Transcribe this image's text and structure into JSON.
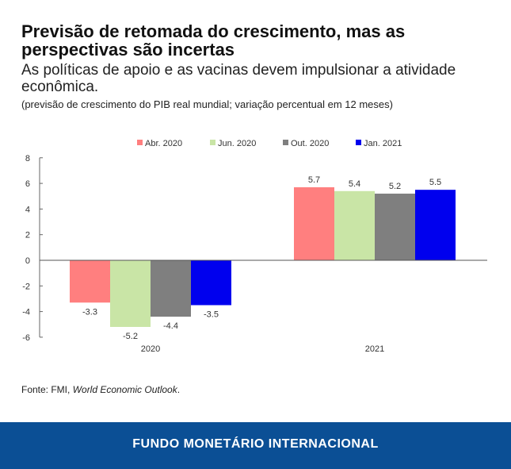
{
  "chart_data": {
    "type": "bar",
    "title": "Previsão de retomada do crescimento, mas as perspectivas são incertas",
    "subtitle": "As políticas de apoio e as vacinas devem impulsionar a atividade econômica.",
    "note": "(previsão de crescimento do PIB real mundial; variação percentual em 12 meses)",
    "categories": [
      "2020",
      "2021"
    ],
    "series": [
      {
        "name": "Abr. 2020",
        "color": "#ff7f7f",
        "values": [
          -3.3,
          5.7
        ]
      },
      {
        "name": "Jun. 2020",
        "color": "#c9e5a6",
        "values": [
          -5.2,
          5.4
        ]
      },
      {
        "name": "Out. 2020",
        "color": "#7f7f7f",
        "values": [
          -4.4,
          5.2
        ]
      },
      {
        "name": "Jan. 2021",
        "color": "#0000ee",
        "values": [
          -3.5,
          5.5
        ]
      }
    ],
    "ylim": [
      -6,
      8
    ],
    "yticks": [
      "8",
      "6",
      "4",
      "2",
      "0",
      "-2",
      "-4",
      "-6"
    ],
    "legend": "top",
    "xlabel": "",
    "ylabel": ""
  },
  "source": {
    "prefix": "Fonte: FMI, ",
    "italic": "World Economic Outlook",
    "suffix": "."
  },
  "footer": "FUNDO MONETÁRIO INTERNACIONAL"
}
